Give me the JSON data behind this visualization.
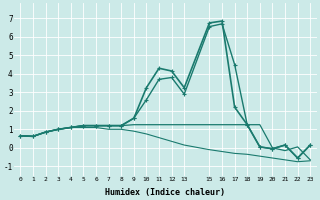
{
  "xlabel": "Humidex (Indice chaleur)",
  "bg_color": "#cceae8",
  "grid_color": "#ffffff",
  "line_color": "#1a7a6e",
  "xlim": [
    -0.5,
    23.5
  ],
  "ylim": [
    -1.5,
    7.8
  ],
  "yticks": [
    -1,
    0,
    1,
    2,
    3,
    4,
    5,
    6,
    7
  ],
  "xticks": [
    0,
    1,
    2,
    3,
    4,
    5,
    6,
    7,
    8,
    9,
    10,
    11,
    12,
    13,
    15,
    16,
    17,
    18,
    19,
    20,
    21,
    22,
    23
  ],
  "x_values": [
    0,
    1,
    2,
    3,
    4,
    5,
    6,
    7,
    8,
    9,
    10,
    11,
    12,
    13,
    15,
    16,
    17,
    18,
    19,
    20,
    21,
    22,
    23
  ],
  "series": [
    {
      "y": [
        0.65,
        0.62,
        0.85,
        1.0,
        1.1,
        1.2,
        1.2,
        1.2,
        1.2,
        1.6,
        3.25,
        4.3,
        4.15,
        3.25,
        6.75,
        6.85,
        2.2,
        1.25,
        0.05,
        -0.05,
        0.15,
        -0.55,
        0.15
      ],
      "lw": 1.2,
      "ms": 3.5
    },
    {
      "y": [
        0.65,
        0.62,
        0.85,
        1.0,
        1.1,
        1.2,
        1.2,
        1.2,
        1.2,
        1.6,
        2.6,
        3.7,
        3.8,
        2.9,
        6.55,
        6.7,
        4.5,
        1.25,
        0.05,
        -0.05,
        0.15,
        -0.55,
        0.15
      ],
      "lw": 1.0,
      "ms": 3.0
    },
    {
      "y": [
        0.65,
        0.62,
        0.85,
        1.0,
        1.1,
        1.2,
        1.2,
        1.2,
        1.2,
        1.25,
        1.25,
        1.25,
        1.25,
        1.25,
        1.25,
        1.25,
        1.25,
        1.25,
        1.25,
        0.0,
        -0.15,
        0.05,
        -0.65
      ],
      "lw": 0.9,
      "ms": 0
    },
    {
      "y": [
        0.65,
        0.62,
        0.85,
        1.0,
        1.1,
        1.1,
        1.1,
        1.0,
        1.0,
        0.9,
        0.75,
        0.55,
        0.35,
        0.15,
        -0.1,
        -0.2,
        -0.3,
        -0.35,
        -0.45,
        -0.55,
        -0.65,
        -0.75,
        -0.7
      ],
      "lw": 0.8,
      "ms": 0
    }
  ]
}
